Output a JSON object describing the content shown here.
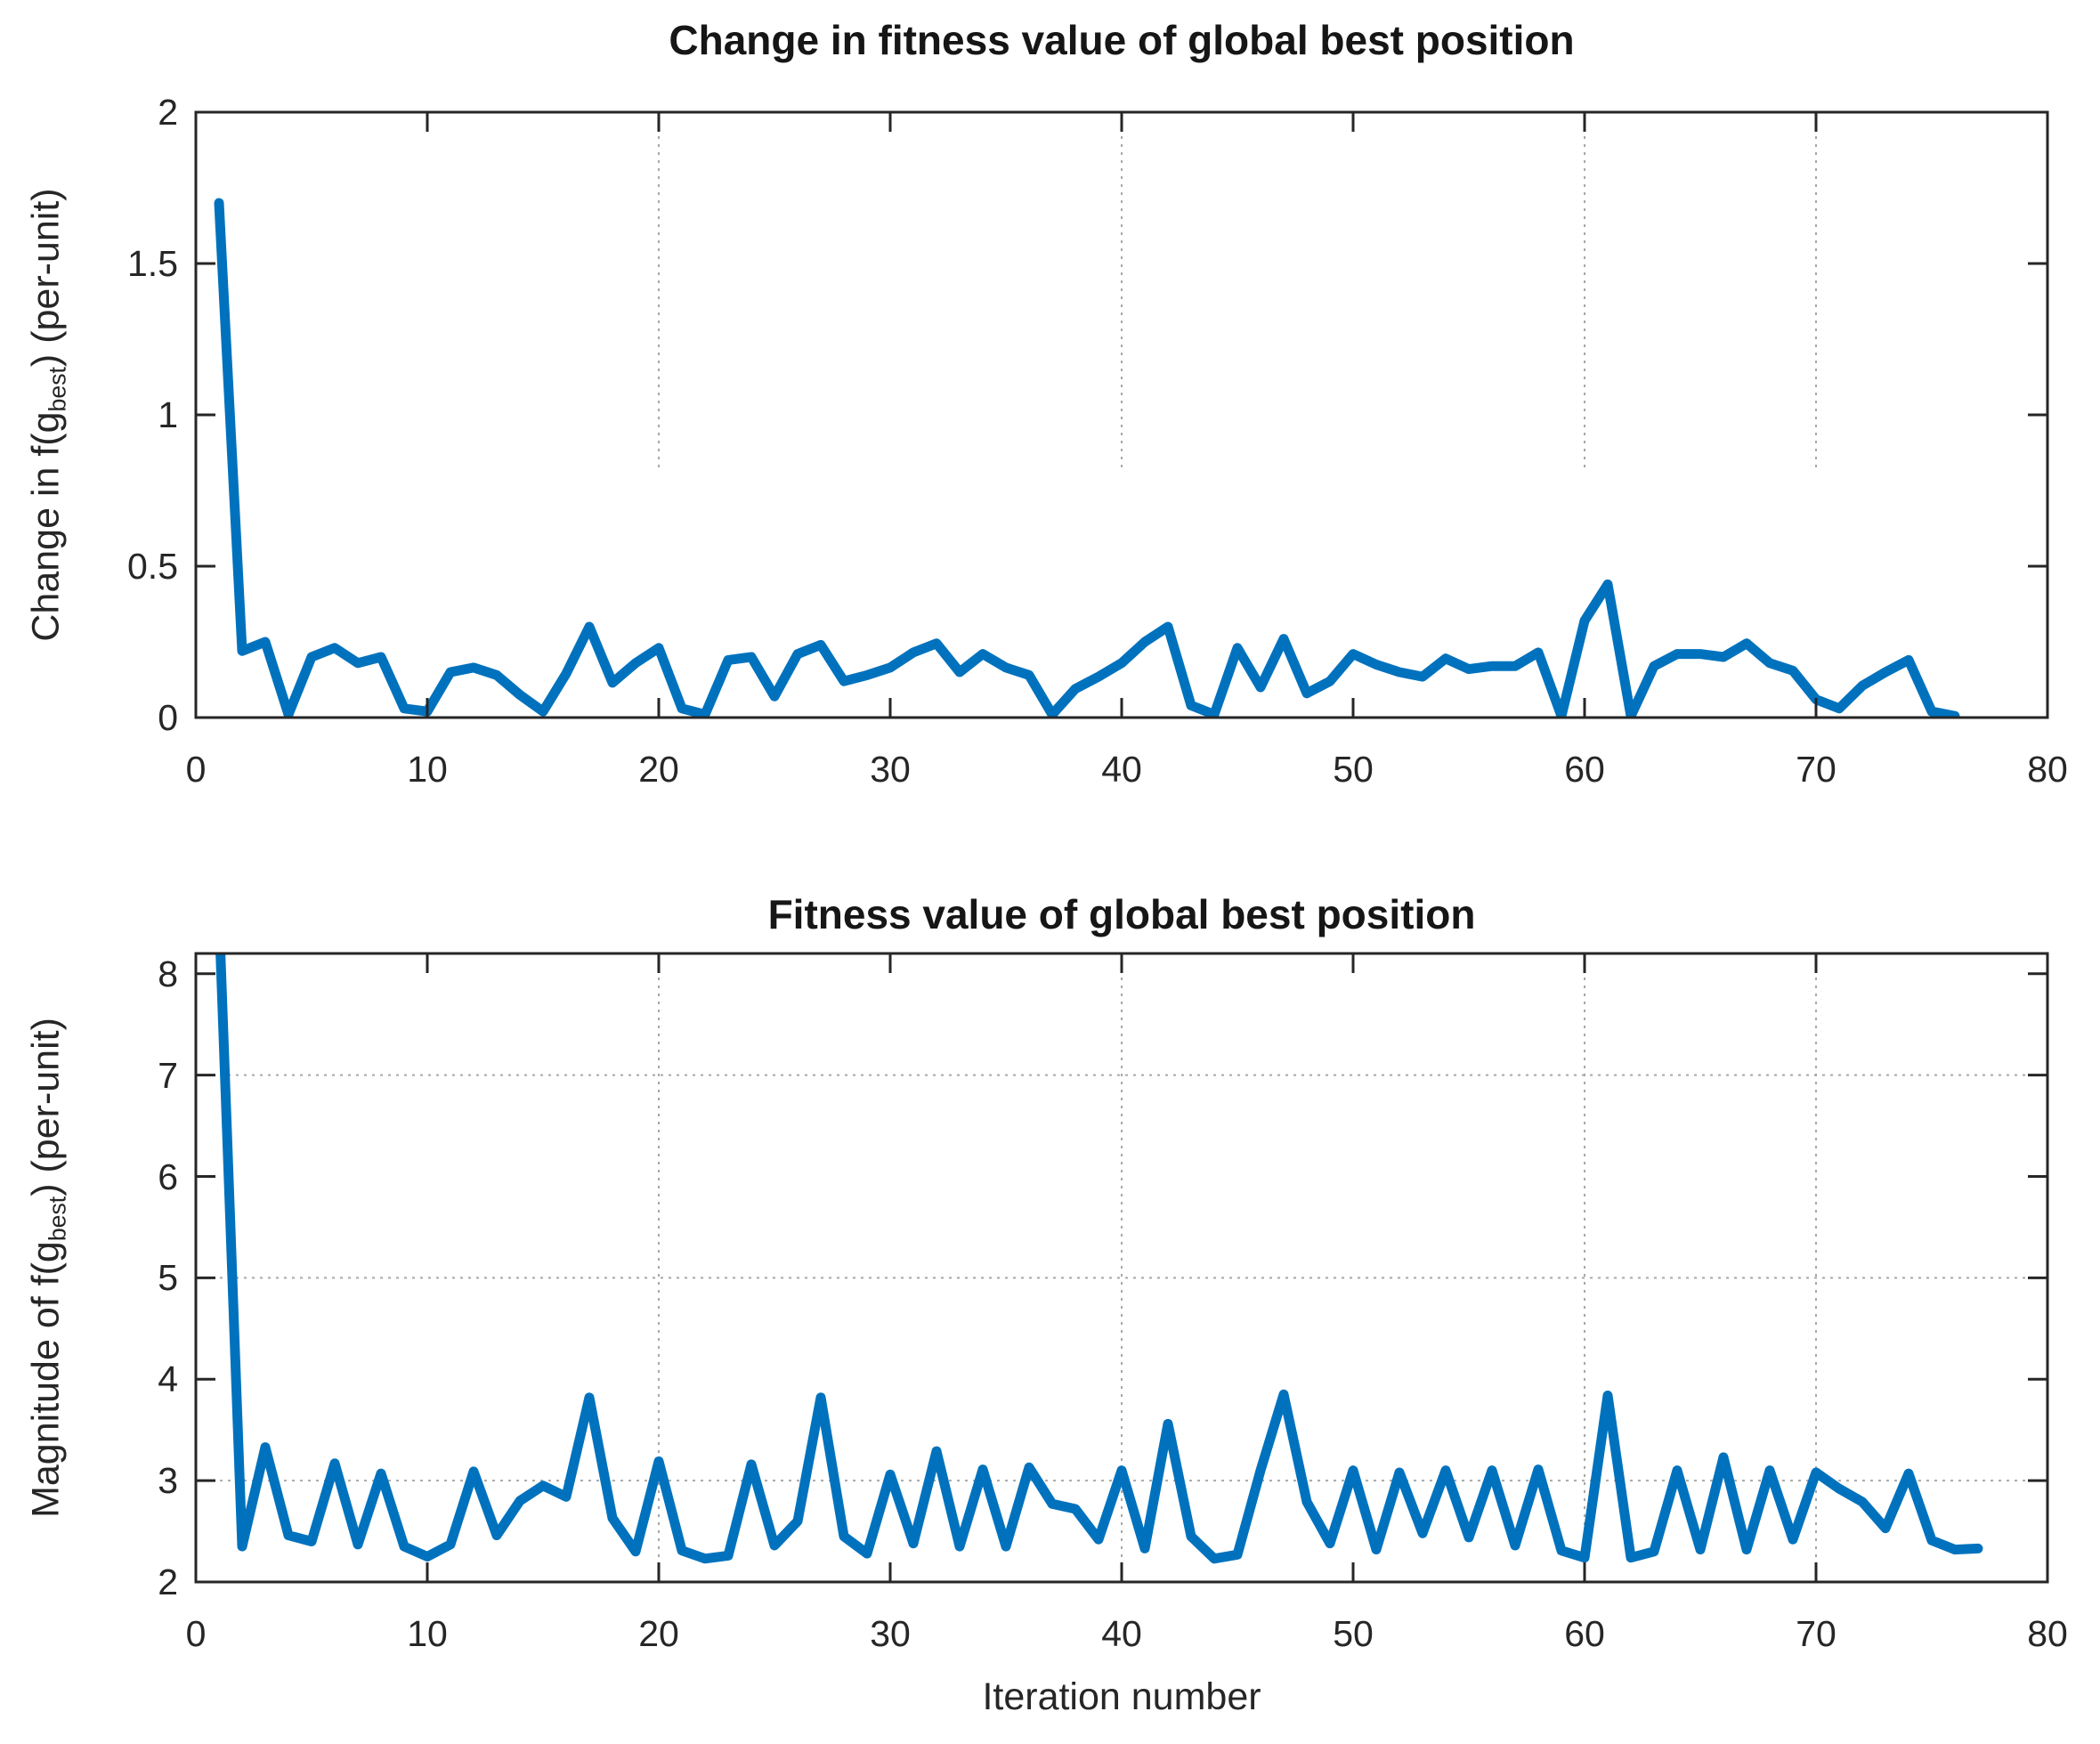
{
  "figure": {
    "background": "#ffffff",
    "axis_color": "#262626",
    "grid_color": "#a8a8a8",
    "line_color": "#0072BD",
    "xlabel": "Iteration number"
  },
  "chart_data": [
    {
      "type": "line",
      "title": "Change in fitness value of global best position",
      "ylabel_pre": "Change in f(g",
      "ylabel_sub": "best",
      "ylabel_post": ") (per-unit)",
      "xlabel": "",
      "x_description": "iteration number; first point at x=1, step 1",
      "xlim": [
        0,
        80
      ],
      "ylim": [
        0,
        2
      ],
      "xticks": [
        0,
        10,
        20,
        30,
        40,
        50,
        60,
        70,
        80
      ],
      "yticks": [
        0,
        0.5,
        1,
        1.5,
        2
      ],
      "ytick_labels": [
        "0",
        "0.5",
        "1",
        "1.5",
        "2"
      ],
      "legend": null,
      "grid": {
        "vertical_x": [
          20,
          40,
          60,
          70
        ],
        "vertical_extend_to_y": 0.82,
        "horizontal_y": []
      },
      "values": [
        1.7,
        0.22,
        0.25,
        0.01,
        0.2,
        0.23,
        0.18,
        0.2,
        0.03,
        0.02,
        0.15,
        0.165,
        0.14,
        0.075,
        0.02,
        0.145,
        0.3,
        0.115,
        0.18,
        0.23,
        0.03,
        0.01,
        0.19,
        0.2,
        0.07,
        0.21,
        0.24,
        0.12,
        0.14,
        0.165,
        0.215,
        0.245,
        0.15,
        0.21,
        0.165,
        0.14,
        0.01,
        0.095,
        0.135,
        0.18,
        0.25,
        0.3,
        0.04,
        0.01,
        0.23,
        0.1,
        0.26,
        0.08,
        0.12,
        0.21,
        0.175,
        0.15,
        0.135,
        0.195,
        0.16,
        0.17,
        0.17,
        0.215,
        0.005,
        0.32,
        0.44,
        0.005,
        0.17,
        0.21,
        0.21,
        0.2,
        0.245,
        0.18,
        0.155,
        0.06,
        0.03,
        0.105,
        0.15,
        0.19,
        0.02,
        0.005
      ]
    },
    {
      "type": "line",
      "title": "Fitness value of global best position",
      "ylabel_pre": "Magnitude of f(g",
      "ylabel_sub": "best",
      "ylabel_post": ") (per-unit)",
      "xlabel": "Iteration number",
      "x_description": "iteration number; first point at x=1, step 1; first value exceeds axis top (clipped)",
      "xlim": [
        0,
        80
      ],
      "ylim": [
        2,
        8.2
      ],
      "xticks": [
        0,
        10,
        20,
        30,
        40,
        50,
        60,
        70,
        80
      ],
      "yticks": [
        2,
        3,
        4,
        5,
        6,
        7,
        8
      ],
      "ytick_labels": [
        "2",
        "3",
        "4",
        "5",
        "6",
        "7",
        "8"
      ],
      "legend": null,
      "grid": {
        "vertical_x": [
          20,
          40,
          60,
          70
        ],
        "horizontal_y": [
          3,
          5,
          7
        ]
      },
      "values": [
        8.6,
        2.35,
        3.33,
        2.46,
        2.4,
        3.17,
        2.37,
        3.07,
        2.35,
        2.25,
        2.37,
        3.09,
        2.46,
        2.8,
        2.95,
        2.84,
        3.82,
        2.63,
        2.3,
        3.19,
        2.31,
        2.23,
        2.26,
        3.16,
        2.36,
        2.6,
        3.82,
        2.45,
        2.28,
        3.06,
        2.38,
        3.29,
        2.35,
        3.11,
        2.35,
        3.13,
        2.77,
        2.72,
        2.42,
        3.1,
        2.33,
        3.56,
        2.45,
        2.23,
        2.27,
        3.1,
        3.85,
        2.79,
        2.38,
        3.1,
        2.32,
        3.08,
        2.48,
        3.1,
        2.44,
        3.1,
        2.36,
        3.11,
        2.31,
        2.24,
        3.84,
        2.24,
        2.3,
        3.1,
        2.32,
        3.23,
        2.32,
        3.1,
        2.42,
        3.08,
        2.92,
        2.79,
        2.53,
        3.07,
        2.41,
        2.32,
        2.33
      ]
    }
  ]
}
